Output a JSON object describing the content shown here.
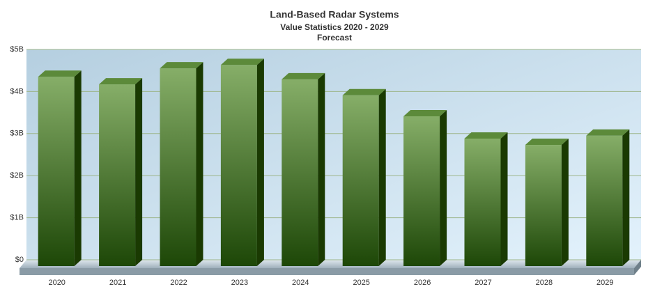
{
  "chart_data": {
    "type": "bar3d",
    "title": "Land-Based Radar Systems",
    "subtitle": "Value Statistics 2020 - 2029",
    "caption": "Forecast",
    "categories": [
      "2020",
      "2021",
      "2022",
      "2023",
      "2024",
      "2025",
      "2026",
      "2027",
      "2028",
      "2029"
    ],
    "values": [
      4.5,
      4.32,
      4.7,
      4.78,
      4.44,
      4.06,
      3.56,
      3.03,
      2.88,
      3.1
    ],
    "color": "#2f5f14",
    "ylim": [
      0,
      5
    ],
    "yticks": [
      {
        "value": 0,
        "label": "$0"
      },
      {
        "value": 1,
        "label": "$1B"
      },
      {
        "value": 2,
        "label": "$2B"
      },
      {
        "value": 3,
        "label": "$3B"
      },
      {
        "value": 4,
        "label": "$4B"
      },
      {
        "value": 5,
        "label": "$5B"
      }
    ],
    "grid": true
  }
}
